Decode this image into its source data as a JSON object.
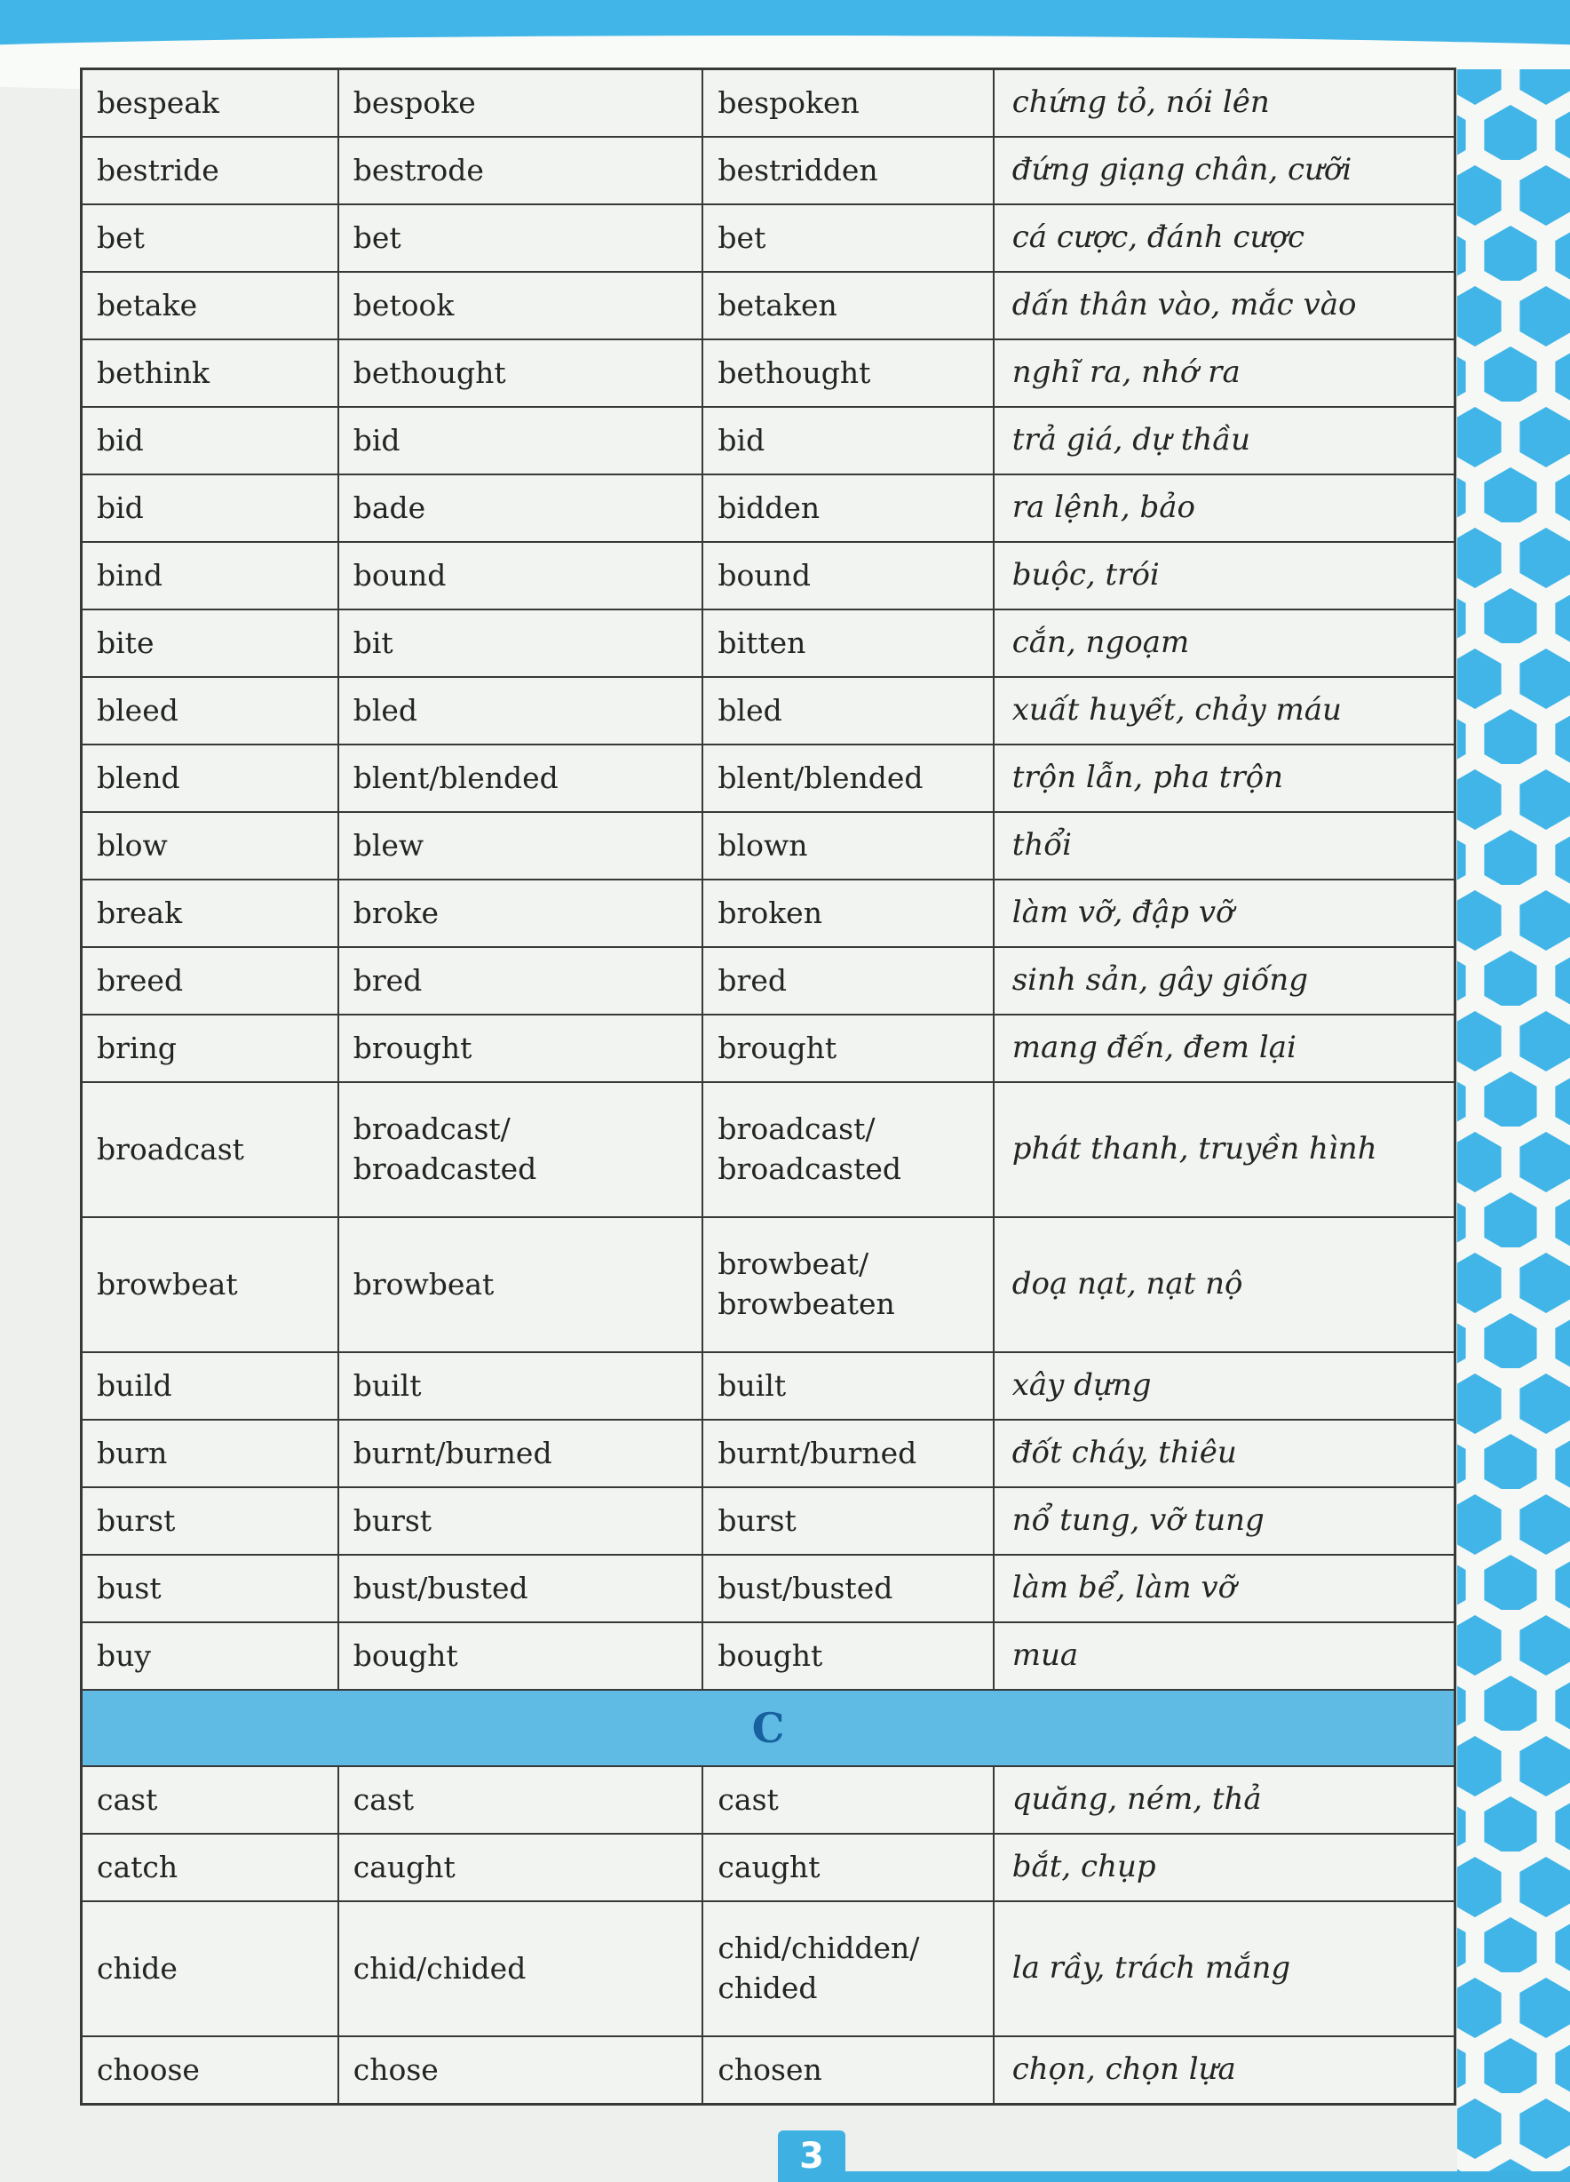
{
  "page": {
    "number": "3",
    "section_letter": "C"
  },
  "colors": {
    "accent_blue": "#41b5e7",
    "section_band_blue": "#5fbbe4",
    "section_letter_blue": "#17619f",
    "page_background": "#edf0ec",
    "table_border": "#383838"
  },
  "table": {
    "columns": [
      "base-form",
      "past-simple",
      "past-participle",
      "meaning-vietnamese"
    ],
    "sections": [
      {
        "type": "rows",
        "rows": [
          [
            "bespeak",
            "bespoke",
            "bespoken",
            "chứng tỏ, nói lên"
          ],
          [
            "bestride",
            "bestrode",
            "bestridden",
            "đứng giạng chân, cưỡi"
          ],
          [
            "bet",
            "bet",
            "bet",
            "cá cược, đánh cược"
          ],
          [
            "betake",
            "betook",
            "betaken",
            "dấn thân vào, mắc vào"
          ],
          [
            "bethink",
            "bethought",
            "bethought",
            "nghĩ ra, nhớ ra"
          ],
          [
            "bid",
            "bid",
            "bid",
            "trả giá, dự thầu"
          ],
          [
            "bid",
            "bade",
            "bidden",
            "ra lệnh, bảo"
          ],
          [
            "bind",
            "bound",
            "bound",
            "buộc, trói"
          ],
          [
            "bite",
            "bit",
            "bitten",
            "cắn, ngoạm"
          ],
          [
            "bleed",
            "bled",
            "bled",
            "xuất huyết, chảy máu"
          ],
          [
            "blend",
            "blent/blended",
            "blent/blended",
            "trộn lẫn, pha trộn"
          ],
          [
            "blow",
            "blew",
            "blown",
            "thổi"
          ],
          [
            "break",
            "broke",
            "broken",
            "làm vỡ, đập vỡ"
          ],
          [
            "breed",
            "bred",
            "bred",
            "sinh sản, gây giống"
          ],
          [
            "bring",
            "brought",
            "brought",
            "mang đến, đem lại"
          ],
          [
            "broadcast",
            "broadcast/\nbroadcasted",
            "broadcast/\nbroadcasted",
            "phát thanh, truyền hình"
          ],
          [
            "browbeat",
            "browbeat",
            "browbeat/\nbrowbeaten",
            "doạ nạt, nạt nộ"
          ],
          [
            "build",
            "built",
            "built",
            "xây dựng"
          ],
          [
            "burn",
            "burnt/burned",
            "burnt/burned",
            "đốt cháy, thiêu"
          ],
          [
            "burst",
            "burst",
            "burst",
            "nổ tung, vỡ tung"
          ],
          [
            "bust",
            "bust/busted",
            "bust/busted",
            "làm bể, làm vỡ"
          ],
          [
            "buy",
            "bought",
            "bought",
            "mua"
          ]
        ]
      },
      {
        "type": "header",
        "label": "C"
      },
      {
        "type": "rows",
        "rows": [
          [
            "cast",
            "cast",
            "cast",
            "quăng, ném, thả"
          ],
          [
            "catch",
            "caught",
            "caught",
            "bắt, chụp"
          ],
          [
            "chide",
            "chid/chided",
            "chid/chidden/\nchided",
            "la rầy, trách mắng"
          ],
          [
            "choose",
            "chose",
            "chosen",
            "chọn, chọn lựa"
          ]
        ]
      }
    ]
  }
}
